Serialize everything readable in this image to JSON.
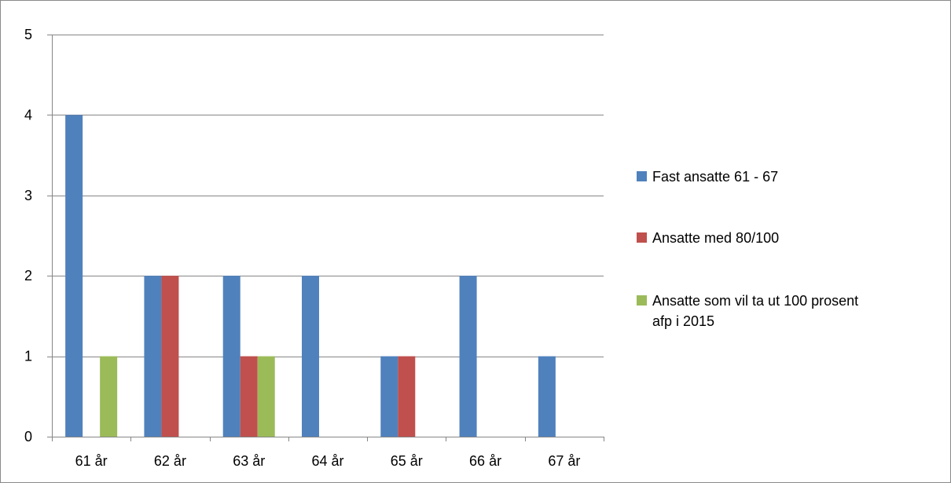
{
  "chart_data": {
    "type": "bar",
    "categories": [
      "61 år",
      "62 år",
      "63 år",
      "64 år",
      "65 år",
      "66 år",
      "67 år"
    ],
    "series": [
      {
        "name": "Fast ansatte 61 - 67",
        "color": "#4f81bd",
        "values": [
          4,
          2,
          2,
          2,
          1,
          2,
          1
        ]
      },
      {
        "name": "Ansatte med 80/100",
        "color": "#c0504d",
        "values": [
          0,
          2,
          1,
          0,
          1,
          0,
          0
        ]
      },
      {
        "name": "Ansatte som vil ta ut  100 prosent afp i 2015",
        "color": "#9bbb59",
        "values": [
          1,
          0,
          1,
          0,
          0,
          0,
          0
        ]
      }
    ],
    "ylim": [
      0,
      5
    ],
    "yticks": [
      0,
      1,
      2,
      3,
      4,
      5
    ],
    "grid": true,
    "legend": "right",
    "gridline_color": "#868686"
  },
  "legend": {
    "lines": [
      [
        "Fast ansatte 61 - 67"
      ],
      [
        "Ansatte med 80/100"
      ],
      [
        "Ansatte som vil ta ut  100 prosent",
        "afp i 2015"
      ]
    ]
  }
}
